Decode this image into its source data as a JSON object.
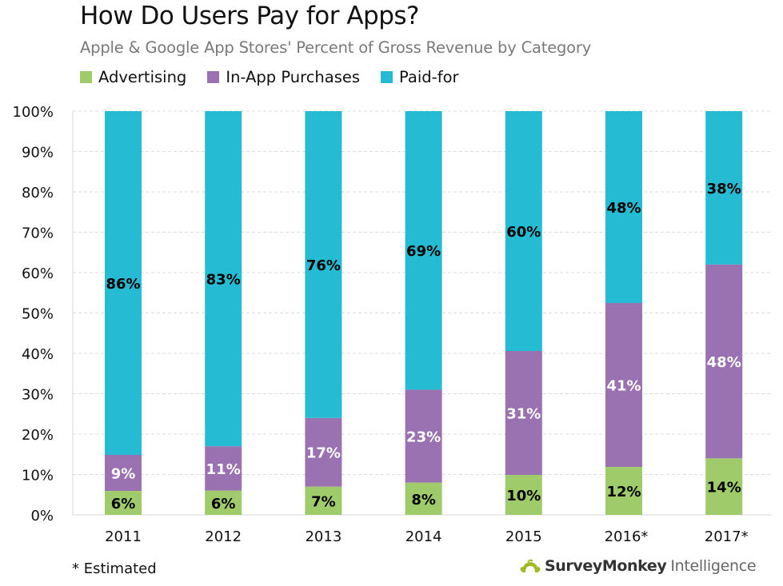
{
  "chart_data": {
    "type": "bar",
    "stacked": true,
    "title": "How Do Users Pay for Apps?",
    "subtitle": "Apple & Google App Stores' Percent of Gross Revenue by Category",
    "xlabel": "",
    "ylabel": "",
    "ylim": [
      0,
      100
    ],
    "yticks": [
      0,
      10,
      20,
      30,
      40,
      50,
      60,
      70,
      80,
      90,
      100
    ],
    "ytick_labels": [
      "0%",
      "10%",
      "20%",
      "30%",
      "40%",
      "50%",
      "60%",
      "70%",
      "80%",
      "90%",
      "100%"
    ],
    "grid": true,
    "legend_position": "top-left",
    "categories": [
      "2011",
      "2012",
      "2013",
      "2014",
      "2015",
      "2016*",
      "2017*"
    ],
    "series": [
      {
        "name": "Advertising",
        "color": "#a0cb6a",
        "label_color": "#000000",
        "values": [
          6,
          6,
          7,
          8,
          10,
          12,
          14
        ]
      },
      {
        "name": "In-App Purchases",
        "color": "#9b72b1",
        "label_color": "#ffffff",
        "values": [
          9,
          11,
          17,
          23,
          31,
          41,
          48
        ]
      },
      {
        "name": "Paid-for",
        "color": "#24bbd3",
        "label_color": "#000000",
        "values": [
          86,
          83,
          76,
          69,
          60,
          48,
          38
        ]
      }
    ],
    "value_label_suffix": "%"
  },
  "footnote": "* Estimated",
  "brand": {
    "name": "SurveyMonkey",
    "suffix": "Intelligence",
    "mark": "®"
  }
}
